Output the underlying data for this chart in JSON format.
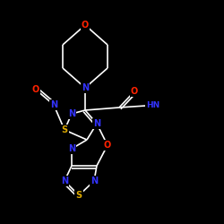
{
  "background_color": "#000000",
  "bond_color": "#ffffff",
  "atom_colors": {
    "N": "#3333ff",
    "O": "#ff2200",
    "S": "#ddaa00",
    "C": "#ffffff"
  },
  "figsize": [
    2.5,
    2.5
  ],
  "dpi": 100
}
